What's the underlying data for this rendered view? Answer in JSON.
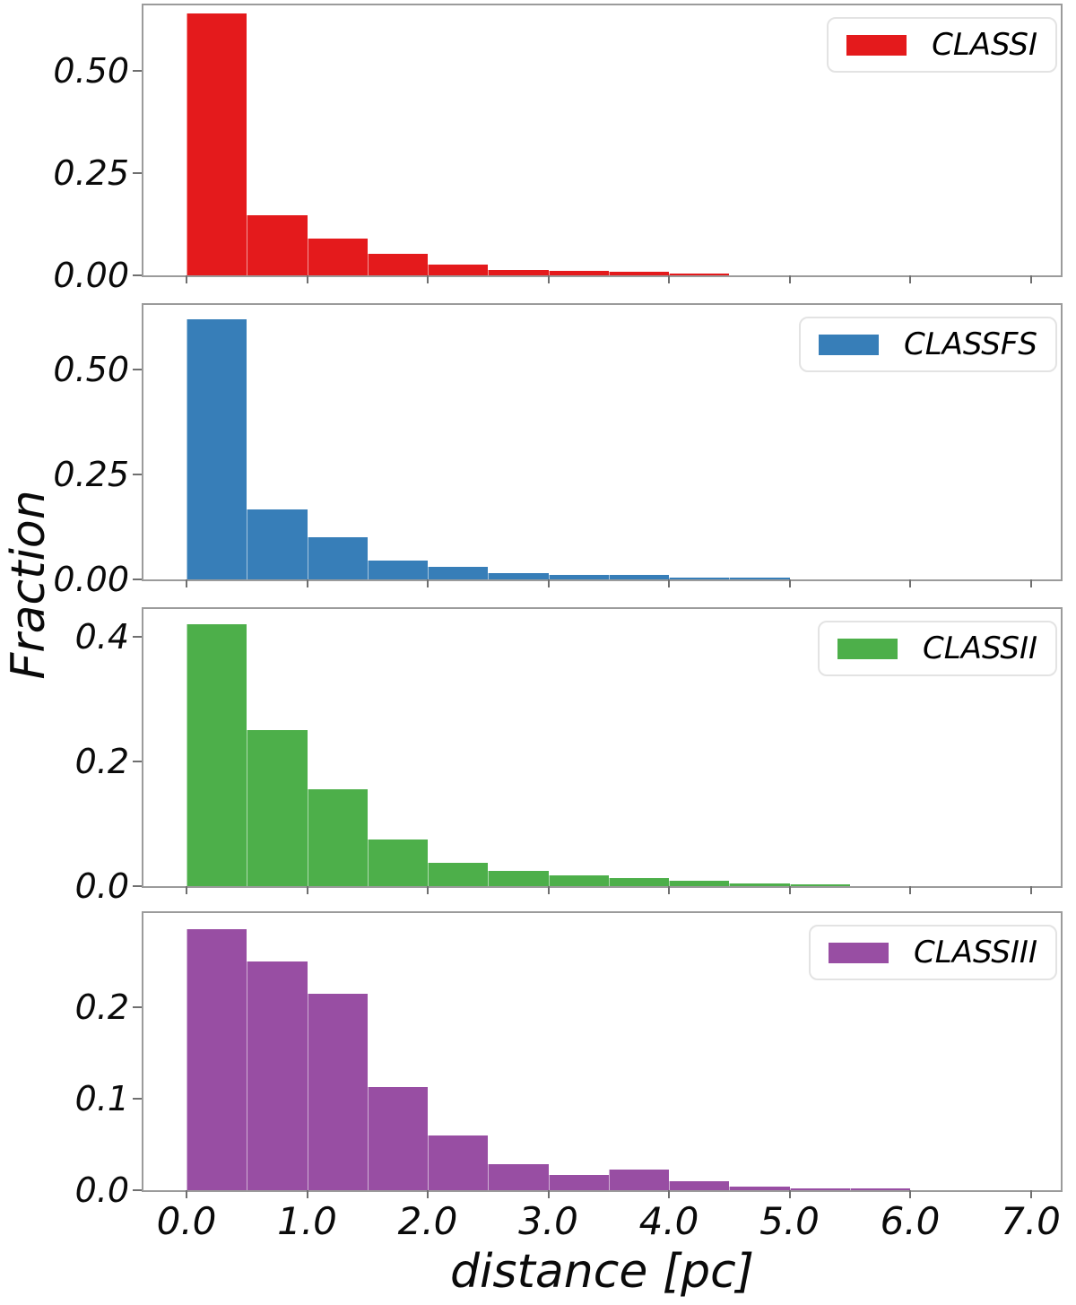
{
  "figure": {
    "xlabel": "distance [pc]",
    "ylabel": "Fraction",
    "x_tick_labels": [
      "0.0",
      "1.0",
      "2.0",
      "3.0",
      "4.0",
      "5.0",
      "6.0",
      "7.0"
    ],
    "x_axis_range": [
      -0.36,
      7.28
    ]
  },
  "chart_data": [
    {
      "type": "bar",
      "subtype": "histogram",
      "series": "CLASSI",
      "legend_label": "CLASSI",
      "legend_position": "upper right",
      "color": "#e41a1c",
      "bin_start": 0.0,
      "bin_width": 0.5,
      "values": [
        0.64,
        0.147,
        0.091,
        0.052,
        0.026,
        0.013,
        0.012,
        0.008,
        0.005
      ],
      "ylim": [
        0,
        0.66
      ],
      "yticks": [
        {
          "value": 0.0,
          "label": "0.00"
        },
        {
          "value": 0.25,
          "label": "0.25"
        },
        {
          "value": 0.5,
          "label": "0.50"
        }
      ],
      "show_x_tick_labels": false
    },
    {
      "type": "bar",
      "subtype": "histogram",
      "series": "CLASSFS",
      "legend_label": "CLASSFS",
      "legend_position": "upper right",
      "color": "#377eb8",
      "bin_start": 0.0,
      "bin_width": 0.5,
      "values": [
        0.62,
        0.166,
        0.1,
        0.045,
        0.03,
        0.016,
        0.011,
        0.01,
        0.004,
        0.002
      ],
      "ylim": [
        0,
        0.655
      ],
      "yticks": [
        {
          "value": 0.0,
          "label": "0.00"
        },
        {
          "value": 0.25,
          "label": "0.25"
        },
        {
          "value": 0.5,
          "label": "0.50"
        }
      ],
      "show_x_tick_labels": false
    },
    {
      "type": "bar",
      "subtype": "histogram",
      "series": "CLASSII",
      "legend_label": "CLASSII",
      "legend_position": "upper right",
      "color": "#4daf4a",
      "bin_start": 0.0,
      "bin_width": 0.5,
      "values": [
        0.42,
        0.25,
        0.155,
        0.075,
        0.038,
        0.024,
        0.018,
        0.013,
        0.008,
        0.004,
        0.002
      ],
      "ylim": [
        0,
        0.445
      ],
      "yticks": [
        {
          "value": 0.0,
          "label": "0.0"
        },
        {
          "value": 0.2,
          "label": "0.2"
        },
        {
          "value": 0.4,
          "label": "0.4"
        }
      ],
      "show_x_tick_labels": false
    },
    {
      "type": "bar",
      "subtype": "histogram",
      "series": "CLASSIII",
      "legend_label": "CLASSIII",
      "legend_position": "upper right",
      "color": "#984ea3",
      "bin_start": 0.0,
      "bin_width": 0.5,
      "values": [
        0.285,
        0.25,
        0.215,
        0.113,
        0.06,
        0.028,
        0.0165,
        0.023,
        0.01,
        0.004,
        0.002,
        0.002
      ],
      "ylim": [
        0,
        0.303
      ],
      "yticks": [
        {
          "value": 0.0,
          "label": "0.0"
        },
        {
          "value": 0.1,
          "label": "0.1"
        },
        {
          "value": 0.2,
          "label": "0.2"
        }
      ],
      "show_x_tick_labels": true
    }
  ]
}
